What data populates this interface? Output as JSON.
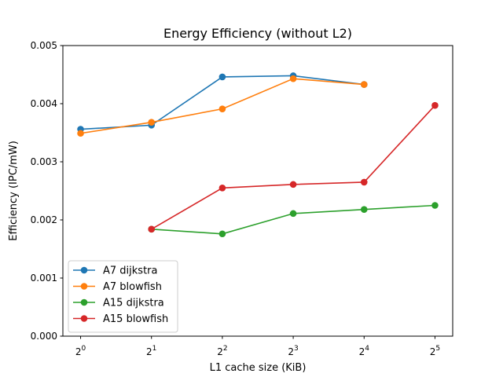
{
  "chart_data": {
    "type": "line",
    "title": "Energy Efficiency (without L2)",
    "xlabel": "L1 cache size (KiB)",
    "ylabel": "Efficiency (IPC/mW)",
    "x_scale": "log2",
    "x": [
      1,
      2,
      4,
      8,
      16,
      32
    ],
    "x_tick_labels": [
      {
        "base": "2",
        "exp": "0"
      },
      {
        "base": "2",
        "exp": "1"
      },
      {
        "base": "2",
        "exp": "2"
      },
      {
        "base": "2",
        "exp": "3"
      },
      {
        "base": "2",
        "exp": "4"
      },
      {
        "base": "2",
        "exp": "5"
      }
    ],
    "ylim": [
      0,
      0.005
    ],
    "y_ticks": [
      "0.000",
      "0.001",
      "0.002",
      "0.003",
      "0.004",
      "0.005"
    ],
    "grid": false,
    "legend_position": "lower-left",
    "series": [
      {
        "name": "A7 dijkstra",
        "color": "#1f77b4",
        "x": [
          1,
          2,
          4,
          8,
          16
        ],
        "values": [
          0.00356,
          0.00363,
          0.00446,
          0.00448,
          0.00433
        ]
      },
      {
        "name": "A7 blowfish",
        "color": "#ff7f0e",
        "x": [
          1,
          2,
          4,
          8,
          16
        ],
        "values": [
          0.00349,
          0.00368,
          0.00391,
          0.00443,
          0.00433
        ]
      },
      {
        "name": "A15 dijkstra",
        "color": "#2ca02c",
        "x": [
          2,
          4,
          8,
          16,
          32
        ],
        "values": [
          0.00184,
          0.00176,
          0.00211,
          0.00218,
          0.00225
        ]
      },
      {
        "name": "A15 blowfish",
        "color": "#d62728",
        "x": [
          2,
          4,
          8,
          16,
          32
        ],
        "values": [
          0.00184,
          0.00255,
          0.00261,
          0.00265,
          0.00397
        ]
      }
    ]
  }
}
